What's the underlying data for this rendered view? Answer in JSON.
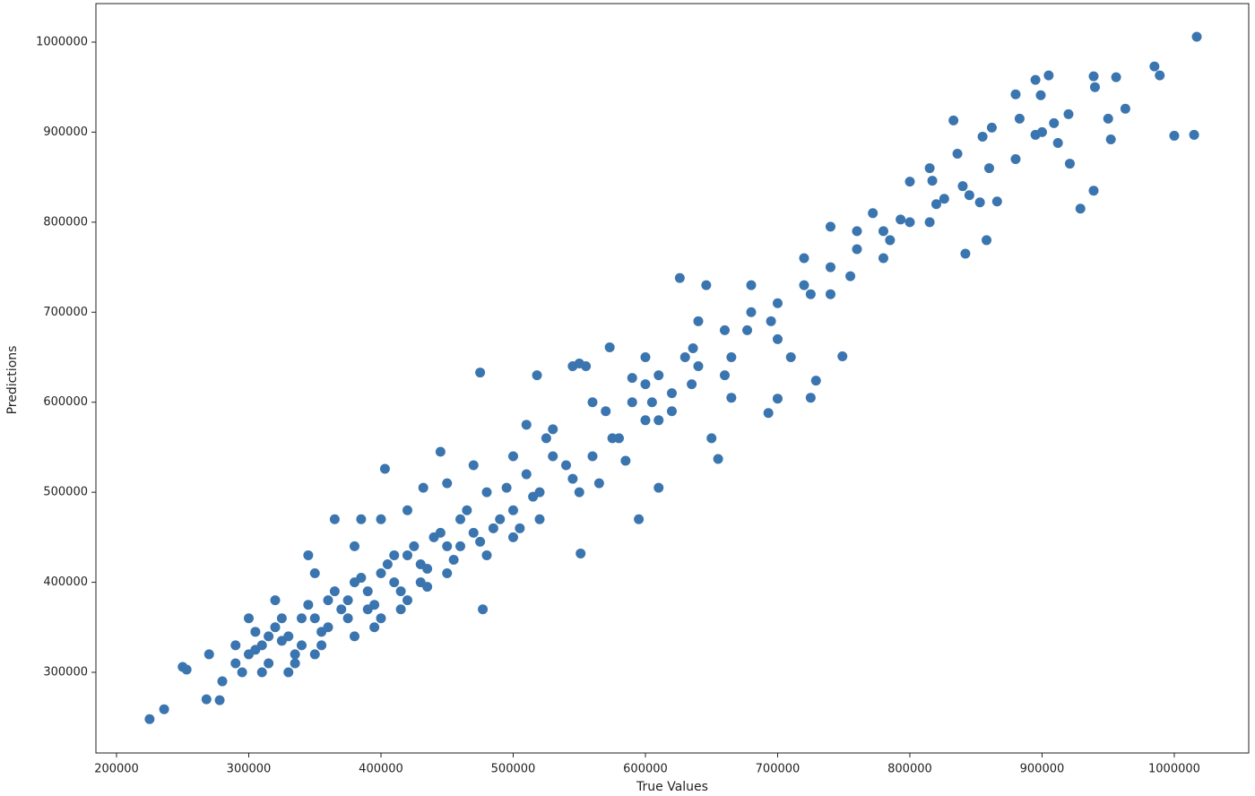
{
  "chart_data": {
    "type": "scatter",
    "xlabel": "True Values",
    "ylabel": "Predictions",
    "color": "#3b75af",
    "xlim": [
      184400,
      1056300
    ],
    "ylim": [
      210400,
      1042800
    ],
    "xticks": [
      200000,
      300000,
      400000,
      500000,
      600000,
      700000,
      800000,
      900000,
      1000000
    ],
    "yticks": [
      300000,
      400000,
      500000,
      600000,
      700000,
      800000,
      900000,
      1000000
    ],
    "x": [
      225000,
      236000,
      250000,
      253000,
      268000,
      278000,
      475000,
      518000,
      403000,
      432000,
      477000,
      551000,
      655000,
      693000,
      729000,
      749000,
      1017000,
      985000,
      989000,
      1000000,
      1015000,
      939000,
      929000,
      858000,
      842000,
      833000,
      905000,
      895000,
      939000,
      956000,
      950000,
      952000,
      963000,
      912000,
      921000,
      880000,
      899000,
      862000,
      855000,
      883000,
      895000,
      909000,
      853000,
      826000,
      866000,
      815000,
      740000,
      772000,
      793000,
      800000,
      817000,
      836000,
      626000,
      646000,
      573000,
      550000,
      545000,
      555000,
      590000,
      665000,
      650000,
      636000,
      700000,
      710000,
      725000,
      677000,
      640000,
      600000,
      620000,
      580000,
      540000,
      560000,
      520000,
      500000,
      490000,
      470000,
      450000,
      430000,
      410000,
      390000,
      370000,
      350000,
      330000,
      310000,
      300000,
      290000,
      320000,
      340000,
      360000,
      380000,
      400000,
      420000,
      440000,
      460000,
      480000,
      510000,
      530000,
      570000,
      590000,
      610000,
      630000,
      660000,
      680000,
      700000,
      720000,
      740000,
      760000,
      780000,
      800000,
      820000,
      840000,
      860000,
      880000,
      900000,
      920000,
      940000,
      330000,
      350000,
      380000,
      400000,
      420000,
      450000,
      480000,
      500000,
      520000,
      550000,
      600000,
      620000,
      660000,
      700000,
      740000,
      780000,
      300000,
      320000,
      350000,
      380000,
      400000,
      420000,
      450000,
      470000,
      500000,
      530000,
      560000,
      600000,
      640000,
      680000,
      720000,
      760000,
      280000,
      290000,
      270000,
      310000,
      340000,
      360000,
      390000,
      410000,
      430000,
      460000,
      485000,
      515000,
      545000,
      575000,
      605000,
      635000,
      665000,
      695000,
      725000,
      755000,
      785000,
      815000,
      845000,
      365000,
      385000,
      345000,
      445000,
      510000,
      525000,
      565000,
      585000,
      595000,
      610000,
      610000,
      305000,
      315000,
      325000,
      335000,
      345000,
      355000,
      365000,
      375000,
      385000,
      395000,
      405000,
      415000,
      425000,
      435000,
      445000,
      455000,
      465000,
      475000,
      495000,
      505000,
      295000,
      305000,
      315000,
      325000,
      335000,
      355000,
      375000,
      395000,
      415000,
      435000
    ],
    "values": [
      248000,
      259000,
      306000,
      303000,
      270000,
      269000,
      633000,
      630000,
      526000,
      505000,
      370000,
      432000,
      537000,
      588000,
      624000,
      651000,
      1006000,
      973000,
      963000,
      896000,
      897000,
      835000,
      815000,
      780000,
      765000,
      913000,
      963000,
      958000,
      962000,
      961000,
      915000,
      892000,
      926000,
      888000,
      865000,
      942000,
      941000,
      905000,
      895000,
      915000,
      897000,
      910000,
      822000,
      826000,
      823000,
      860000,
      795000,
      810000,
      803000,
      845000,
      846000,
      876000,
      738000,
      730000,
      661000,
      643000,
      640000,
      640000,
      627000,
      605000,
      560000,
      660000,
      604000,
      650000,
      605000,
      680000,
      640000,
      620000,
      610000,
      560000,
      530000,
      540000,
      500000,
      480000,
      470000,
      455000,
      440000,
      420000,
      400000,
      390000,
      370000,
      360000,
      340000,
      330000,
      320000,
      310000,
      350000,
      330000,
      380000,
      400000,
      410000,
      430000,
      450000,
      470000,
      500000,
      520000,
      540000,
      590000,
      600000,
      630000,
      650000,
      680000,
      700000,
      710000,
      730000,
      750000,
      770000,
      790000,
      800000,
      820000,
      840000,
      860000,
      870000,
      900000,
      920000,
      950000,
      300000,
      320000,
      340000,
      360000,
      380000,
      410000,
      430000,
      450000,
      470000,
      500000,
      580000,
      590000,
      630000,
      670000,
      720000,
      760000,
      360000,
      380000,
      410000,
      440000,
      470000,
      480000,
      510000,
      530000,
      540000,
      570000,
      600000,
      650000,
      690000,
      730000,
      760000,
      790000,
      290000,
      330000,
      320000,
      300000,
      360000,
      350000,
      370000,
      430000,
      400000,
      440000,
      460000,
      495000,
      515000,
      560000,
      600000,
      620000,
      650000,
      690000,
      720000,
      740000,
      780000,
      800000,
      830000,
      470000,
      470000,
      430000,
      545000,
      575000,
      560000,
      510000,
      535000,
      470000,
      505000,
      580000,
      345000,
      310000,
      360000,
      320000,
      375000,
      345000,
      390000,
      360000,
      405000,
      375000,
      420000,
      390000,
      440000,
      415000,
      455000,
      425000,
      480000,
      445000,
      505000,
      460000,
      300000,
      325000,
      340000,
      335000,
      310000,
      330000,
      380000,
      350000,
      370000,
      395000
    ]
  }
}
